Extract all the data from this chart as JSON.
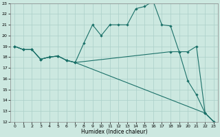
{
  "xlabel": "Humidex (Indice chaleur)",
  "xlim": [
    -0.5,
    23.5
  ],
  "ylim": [
    12,
    23
  ],
  "yticks": [
    12,
    13,
    14,
    15,
    16,
    17,
    18,
    19,
    20,
    21,
    22,
    23
  ],
  "xticks": [
    0,
    1,
    2,
    3,
    4,
    5,
    6,
    7,
    8,
    9,
    10,
    11,
    12,
    13,
    14,
    15,
    16,
    17,
    18,
    19,
    20,
    21,
    22,
    23
  ],
  "background_color": "#cce8e0",
  "grid_color": "#aacfc8",
  "line_color": "#1a7068",
  "line1_x": [
    0,
    1,
    2,
    3,
    4,
    5,
    6,
    7,
    8,
    9,
    10,
    11,
    12,
    13,
    14,
    15,
    16,
    17,
    18,
    19,
    20,
    21,
    22,
    23
  ],
  "line1_y": [
    19,
    18.7,
    18.7,
    17.8,
    18.0,
    18.1,
    17.7,
    17.5,
    19.3,
    21.0,
    20.0,
    21.0,
    21.0,
    21.0,
    22.5,
    22.7,
    23.2,
    21.0,
    20.9,
    18.5,
    15.8,
    14.5,
    12.8,
    12.0
  ],
  "line2_x": [
    0,
    1,
    2,
    3,
    4,
    5,
    6,
    7,
    18,
    19,
    20,
    21,
    22,
    23
  ],
  "line2_y": [
    19,
    18.7,
    18.7,
    17.8,
    18.0,
    18.1,
    17.7,
    17.5,
    18.5,
    18.5,
    18.5,
    19.0,
    12.8,
    12.0
  ],
  "line3_x": [
    0,
    1,
    2,
    3,
    4,
    5,
    6,
    7,
    22,
    23
  ],
  "line3_y": [
    19,
    18.7,
    18.7,
    17.8,
    18.0,
    18.1,
    17.7,
    17.5,
    12.8,
    12.0
  ]
}
